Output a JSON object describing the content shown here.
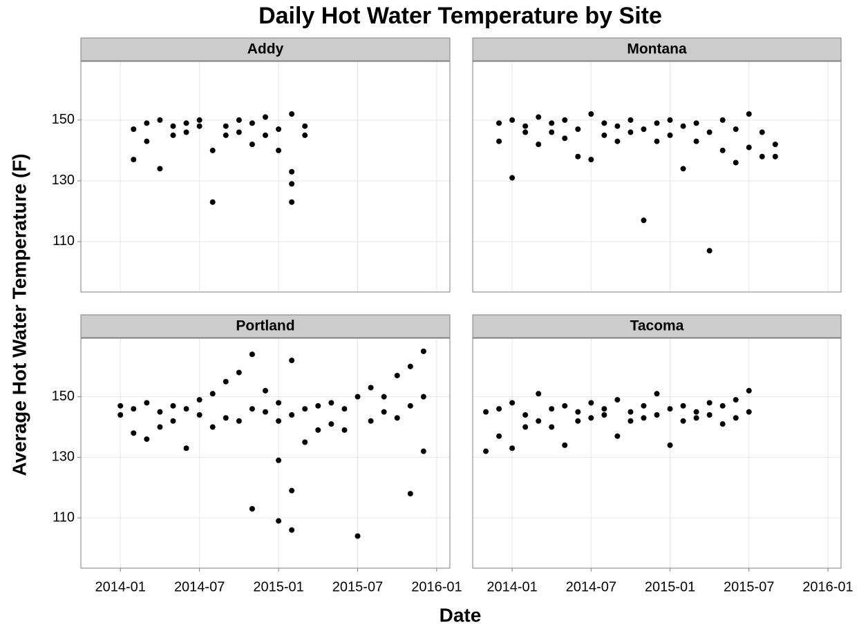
{
  "chart_data": {
    "type": "scatter",
    "title": "Daily Hot Water Temperature by Site",
    "x_label": "Date",
    "y_label": "Average Hot Water Temperature (F)",
    "xlim": [
      "2013-10",
      "2016-02"
    ],
    "xticks": [
      "2014-01",
      "2014-07",
      "2015-01",
      "2015-07",
      "2016-01"
    ],
    "ylim": [
      93.4,
      169.3
    ],
    "yticks": [
      110,
      130,
      150
    ],
    "grid": true,
    "color": "#000000",
    "panels": [
      {
        "name": "Addy",
        "x": [
          "2014-02",
          "2014-02",
          "2014-03",
          "2014-03",
          "2014-04",
          "2014-04",
          "2014-05",
          "2014-05",
          "2014-06",
          "2014-06",
          "2014-07",
          "2014-07",
          "2014-08",
          "2014-08",
          "2014-09",
          "2014-09",
          "2014-10",
          "2014-10",
          "2014-11",
          "2014-11",
          "2014-12",
          "2014-12",
          "2015-01",
          "2015-01",
          "2015-02",
          "2015-02",
          "2015-02",
          "2015-02",
          "2015-03",
          "2015-03"
        ],
        "values": [
          147,
          137,
          149,
          143,
          150,
          134,
          148,
          145,
          149,
          146,
          148,
          150,
          123,
          140,
          148,
          145,
          150,
          146,
          149,
          142,
          151,
          145,
          147,
          140,
          123,
          152,
          133,
          129,
          148,
          145
        ]
      },
      {
        "name": "Montana",
        "x": [
          "2013-12",
          "2013-12",
          "2014-01",
          "2014-01",
          "2014-02",
          "2014-02",
          "2014-03",
          "2014-03",
          "2014-04",
          "2014-04",
          "2014-05",
          "2014-05",
          "2014-06",
          "2014-06",
          "2014-07",
          "2014-07",
          "2014-08",
          "2014-08",
          "2014-09",
          "2014-09",
          "2014-10",
          "2014-10",
          "2014-11",
          "2014-11",
          "2014-12",
          "2014-12",
          "2015-01",
          "2015-01",
          "2015-02",
          "2015-02",
          "2015-03",
          "2015-03",
          "2015-04",
          "2015-04",
          "2015-05",
          "2015-05",
          "2015-06",
          "2015-06",
          "2015-07",
          "2015-07",
          "2015-08",
          "2015-08",
          "2015-09",
          "2015-09"
        ],
        "values": [
          149,
          143,
          150,
          131,
          148,
          146,
          151,
          142,
          149,
          146,
          150,
          144,
          147,
          138,
          152,
          137,
          149,
          145,
          148,
          143,
          150,
          146,
          147,
          117,
          149,
          143,
          150,
          145,
          148,
          134,
          149,
          143,
          146,
          107,
          150,
          140,
          147,
          136,
          152,
          141,
          146,
          138,
          142,
          138
        ]
      },
      {
        "name": "Portland",
        "x": [
          "2014-01",
          "2014-01",
          "2014-02",
          "2014-02",
          "2014-03",
          "2014-03",
          "2014-04",
          "2014-04",
          "2014-05",
          "2014-05",
          "2014-06",
          "2014-06",
          "2014-07",
          "2014-07",
          "2014-08",
          "2014-08",
          "2014-09",
          "2014-09",
          "2014-10",
          "2014-10",
          "2014-11",
          "2014-11",
          "2014-11",
          "2014-12",
          "2014-12",
          "2015-01",
          "2015-01",
          "2015-01",
          "2015-01",
          "2015-02",
          "2015-02",
          "2015-02",
          "2015-02",
          "2015-03",
          "2015-03",
          "2015-04",
          "2015-04",
          "2015-05",
          "2015-05",
          "2015-06",
          "2015-06",
          "2015-07",
          "2015-07",
          "2015-08",
          "2015-08",
          "2015-09",
          "2015-09",
          "2015-10",
          "2015-10",
          "2015-11",
          "2015-11",
          "2015-11",
          "2015-12",
          "2015-12",
          "2015-12"
        ],
        "values": [
          147,
          144,
          146,
          138,
          148,
          136,
          145,
          140,
          147,
          142,
          146,
          133,
          149,
          144,
          151,
          140,
          155,
          143,
          158,
          142,
          164,
          113,
          146,
          152,
          145,
          148,
          129,
          109,
          142,
          162,
          119,
          106,
          144,
          146,
          135,
          147,
          139,
          148,
          141,
          146,
          139,
          150,
          104,
          153,
          142,
          150,
          145,
          157,
          143,
          160,
          118,
          147,
          165,
          132,
          150
        ]
      },
      {
        "name": "Tacoma",
        "x": [
          "2013-11",
          "2013-11",
          "2013-12",
          "2013-12",
          "2014-01",
          "2014-01",
          "2014-02",
          "2014-02",
          "2014-03",
          "2014-03",
          "2014-04",
          "2014-04",
          "2014-05",
          "2014-05",
          "2014-06",
          "2014-06",
          "2014-07",
          "2014-07",
          "2014-08",
          "2014-08",
          "2014-09",
          "2014-09",
          "2014-10",
          "2014-10",
          "2014-11",
          "2014-11",
          "2014-12",
          "2014-12",
          "2015-01",
          "2015-01",
          "2015-02",
          "2015-02",
          "2015-03",
          "2015-03",
          "2015-04",
          "2015-04",
          "2015-05",
          "2015-05",
          "2015-06",
          "2015-06",
          "2015-07",
          "2015-07"
        ],
        "values": [
          145,
          132,
          146,
          137,
          148,
          133,
          144,
          140,
          151,
          142,
          146,
          140,
          147,
          134,
          145,
          142,
          148,
          143,
          146,
          144,
          149,
          137,
          145,
          142,
          147,
          143,
          151,
          144,
          146,
          134,
          147,
          142,
          145,
          143,
          148,
          144,
          147,
          141,
          149,
          143,
          152,
          145
        ]
      }
    ]
  }
}
